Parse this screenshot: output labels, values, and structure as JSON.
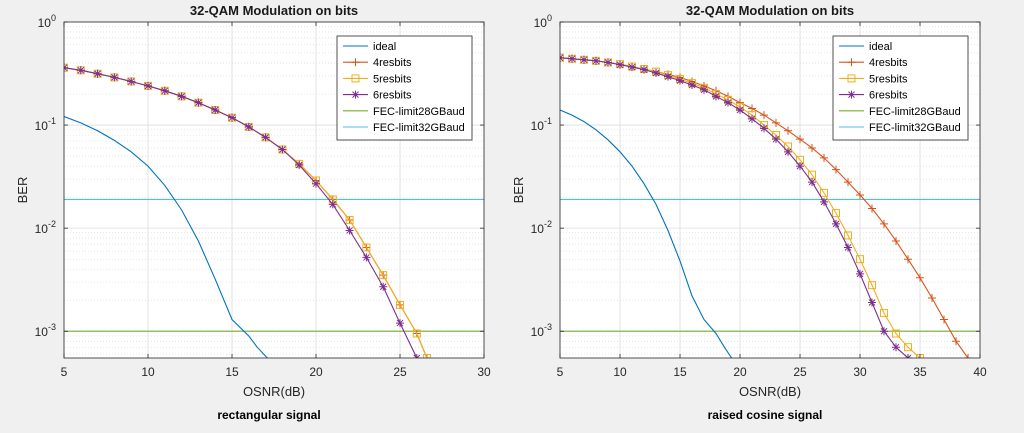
{
  "chart_data": [
    {
      "type": "line",
      "title": "32-QAM Modulation on bits",
      "xlabel": "OSNR(dB)",
      "ylabel": "BER",
      "caption": "rectangular signal",
      "xlim": [
        5,
        30
      ],
      "ylim": [
        0.00055,
        1
      ],
      "yscale": "log",
      "grid": true,
      "legend_position": "top-right",
      "xticks": [
        5,
        10,
        15,
        20,
        25,
        30
      ],
      "yticks": [
        {
          "value": 1,
          "base": "10",
          "exp": "0"
        },
        {
          "value": 0.1,
          "base": "10",
          "exp": "-1"
        },
        {
          "value": 0.01,
          "base": "10",
          "exp": "-2"
        },
        {
          "value": 0.001,
          "base": "10",
          "exp": "-3"
        }
      ],
      "series": [
        {
          "name": "ideal",
          "color": "#0072BD",
          "marker": "none",
          "x": [
            5,
            6,
            7,
            8,
            9,
            10,
            11,
            12,
            13,
            14,
            15,
            16,
            16.5,
            17.1
          ],
          "y": [
            0.121,
            0.105,
            0.088,
            0.071,
            0.055,
            0.04,
            0.026,
            0.015,
            0.0075,
            0.0032,
            0.0013,
            0.0009,
            0.0007,
            0.00055
          ]
        },
        {
          "name": "4resbits",
          "color": "#D95319",
          "marker": "plus",
          "x": [
            5,
            6,
            7,
            8,
            9,
            10,
            11,
            12,
            13,
            14,
            15,
            16,
            17,
            18,
            19,
            20,
            21,
            22,
            23,
            24,
            25,
            26,
            26.6
          ],
          "y": [
            0.36,
            0.34,
            0.315,
            0.29,
            0.265,
            0.24,
            0.215,
            0.19,
            0.165,
            0.14,
            0.118,
            0.096,
            0.076,
            0.058,
            0.042,
            0.029,
            0.019,
            0.012,
            0.0065,
            0.0035,
            0.0018,
            0.00095,
            0.00055
          ]
        },
        {
          "name": "5resbits",
          "color": "#EDB120",
          "marker": "square",
          "x": [
            5,
            6,
            7,
            8,
            9,
            10,
            11,
            12,
            13,
            14,
            15,
            16,
            17,
            18,
            19,
            20,
            21,
            22,
            23,
            24,
            25,
            26,
            26.6
          ],
          "y": [
            0.36,
            0.34,
            0.315,
            0.29,
            0.265,
            0.24,
            0.215,
            0.19,
            0.165,
            0.14,
            0.118,
            0.096,
            0.076,
            0.058,
            0.042,
            0.029,
            0.019,
            0.012,
            0.0065,
            0.0035,
            0.0018,
            0.00095,
            0.00055
          ]
        },
        {
          "name": "6resbits",
          "color": "#7E2F8E",
          "marker": "asterisk",
          "x": [
            5,
            6,
            7,
            8,
            9,
            10,
            11,
            12,
            13,
            14,
            15,
            16,
            17,
            18,
            19,
            20,
            21,
            22,
            23,
            24,
            25,
            26
          ],
          "y": [
            0.36,
            0.34,
            0.315,
            0.29,
            0.265,
            0.24,
            0.215,
            0.19,
            0.165,
            0.14,
            0.118,
            0.096,
            0.076,
            0.058,
            0.041,
            0.027,
            0.017,
            0.0095,
            0.0052,
            0.0027,
            0.0012,
            0.00055
          ]
        },
        {
          "name": "FEC-limit28GBaud",
          "color": "#77AC30",
          "marker": "none",
          "x": [
            5,
            30
          ],
          "y": [
            0.001,
            0.001
          ]
        },
        {
          "name": "FEC-limit32GBaud",
          "color": "#4DBEEE",
          "marker": "none",
          "x": [
            5,
            30
          ],
          "y": [
            0.019,
            0.019
          ]
        }
      ]
    },
    {
      "type": "line",
      "title": "32-QAM Modulation on bits",
      "xlabel": "OSNR(dB)",
      "ylabel": "BER",
      "caption": "raised cosine signal",
      "xlim": [
        5,
        40
      ],
      "ylim": [
        0.00055,
        1
      ],
      "yscale": "log",
      "grid": true,
      "legend_position": "top-right",
      "xticks": [
        5,
        10,
        15,
        20,
        25,
        30,
        35,
        40
      ],
      "yticks": [
        {
          "value": 1,
          "base": "10",
          "exp": "0"
        },
        {
          "value": 0.1,
          "base": "10",
          "exp": "-1"
        },
        {
          "value": 0.01,
          "base": "10",
          "exp": "-2"
        },
        {
          "value": 0.001,
          "base": "10",
          "exp": "-3"
        }
      ],
      "series": [
        {
          "name": "ideal",
          "color": "#0072BD",
          "marker": "none",
          "x": [
            5,
            6,
            7,
            8,
            9,
            10,
            11,
            12,
            13,
            14,
            15,
            16,
            17,
            18,
            18.7,
            19.3
          ],
          "y": [
            0.14,
            0.125,
            0.108,
            0.09,
            0.072,
            0.055,
            0.04,
            0.027,
            0.017,
            0.0095,
            0.0048,
            0.0022,
            0.0013,
            0.00095,
            0.0007,
            0.00055
          ]
        },
        {
          "name": "4resbits",
          "color": "#D95319",
          "marker": "plus",
          "x": [
            5,
            6,
            7,
            8,
            9,
            10,
            11,
            12,
            13,
            14,
            15,
            16,
            17,
            18,
            19,
            20,
            21,
            22,
            23,
            24,
            25,
            26,
            27,
            28,
            29,
            30,
            31,
            32,
            33,
            34,
            35,
            36,
            37,
            38,
            39
          ],
          "y": [
            0.45,
            0.44,
            0.43,
            0.42,
            0.405,
            0.39,
            0.37,
            0.35,
            0.33,
            0.31,
            0.29,
            0.265,
            0.24,
            0.215,
            0.19,
            0.165,
            0.145,
            0.125,
            0.105,
            0.088,
            0.073,
            0.06,
            0.048,
            0.037,
            0.028,
            0.021,
            0.0155,
            0.011,
            0.0075,
            0.005,
            0.0033,
            0.0021,
            0.0013,
            0.0008,
            0.00055
          ]
        },
        {
          "name": "5resbits",
          "color": "#EDB120",
          "marker": "square",
          "x": [
            5,
            6,
            7,
            8,
            9,
            10,
            11,
            12,
            13,
            14,
            15,
            16,
            17,
            18,
            19,
            20,
            21,
            22,
            23,
            24,
            25,
            26,
            27,
            28,
            29,
            30,
            31,
            32,
            33,
            34,
            35
          ],
          "y": [
            0.45,
            0.44,
            0.43,
            0.42,
            0.405,
            0.39,
            0.37,
            0.35,
            0.33,
            0.305,
            0.28,
            0.255,
            0.23,
            0.2,
            0.175,
            0.15,
            0.125,
            0.1,
            0.08,
            0.062,
            0.046,
            0.033,
            0.022,
            0.014,
            0.0085,
            0.005,
            0.0028,
            0.0015,
            0.00095,
            0.0007,
            0.00055
          ]
        },
        {
          "name": "6resbits",
          "color": "#7E2F8E",
          "marker": "asterisk",
          "x": [
            5,
            6,
            7,
            8,
            9,
            10,
            11,
            12,
            13,
            14,
            15,
            16,
            17,
            18,
            19,
            20,
            21,
            22,
            23,
            24,
            25,
            26,
            27,
            28,
            29,
            30,
            31,
            32,
            33,
            34
          ],
          "y": [
            0.45,
            0.44,
            0.43,
            0.42,
            0.405,
            0.385,
            0.365,
            0.345,
            0.32,
            0.295,
            0.27,
            0.245,
            0.22,
            0.19,
            0.165,
            0.14,
            0.115,
            0.093,
            0.073,
            0.055,
            0.04,
            0.028,
            0.018,
            0.011,
            0.0065,
            0.0036,
            0.0019,
            0.001,
            0.0007,
            0.00055
          ]
        },
        {
          "name": "FEC-limit28GBaud",
          "color": "#77AC30",
          "marker": "none",
          "x": [
            5,
            40
          ],
          "y": [
            0.001,
            0.001
          ]
        },
        {
          "name": "FEC-limit32GBaud",
          "color": "#4DBEEE",
          "marker": "none",
          "x": [
            5,
            40
          ],
          "y": [
            0.019,
            0.019
          ]
        }
      ]
    }
  ]
}
